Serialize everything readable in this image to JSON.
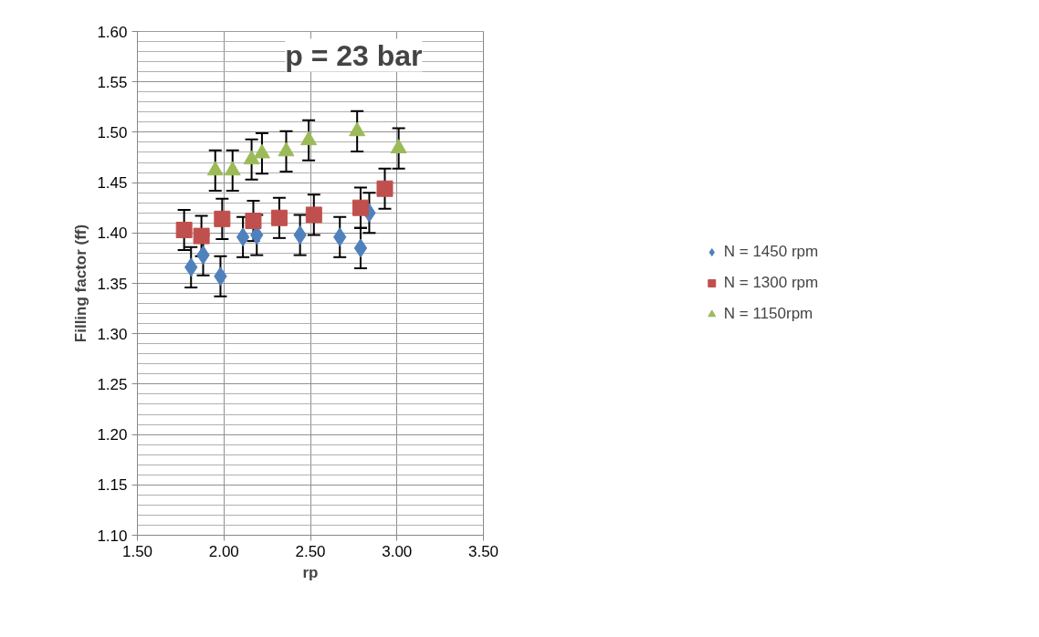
{
  "chart_data": {
    "type": "scatter",
    "title": "p = 23 bar",
    "xlabel": "rp",
    "ylabel": "Filling factor (ff)",
    "xlim": [
      1.5,
      3.5
    ],
    "xticks": [
      {
        "value": 1.5,
        "label": "1.50"
      },
      {
        "value": 2.0,
        "label": "2.00"
      },
      {
        "value": 2.5,
        "label": "2.50"
      },
      {
        "value": 3.0,
        "label": "3.00"
      },
      {
        "value": 3.5,
        "label": "3.50"
      }
    ],
    "ylim": [
      1.1,
      1.6
    ],
    "yticks": [
      {
        "value": 1.1,
        "label": "1.10"
      },
      {
        "value": 1.15,
        "label": "1.15"
      },
      {
        "value": 1.2,
        "label": "1.20"
      },
      {
        "value": 1.25,
        "label": "1.25"
      },
      {
        "value": 1.3,
        "label": "1.30"
      },
      {
        "value": 1.35,
        "label": "1.35"
      },
      {
        "value": 1.4,
        "label": "1.40"
      },
      {
        "value": 1.45,
        "label": "1.45"
      },
      {
        "value": 1.5,
        "label": "1.50"
      },
      {
        "value": 1.55,
        "label": "1.55"
      },
      {
        "value": 1.6,
        "label": "1.60"
      }
    ],
    "grid": true,
    "legend": "right",
    "series": [
      {
        "name": "N = 1450 rpm",
        "color": "#4f81bd",
        "marker": "diamond",
        "x": [
          1.81,
          1.88,
          1.98,
          2.11,
          2.19,
          2.44,
          2.67,
          2.79,
          2.84
        ],
        "values": [
          1.366,
          1.378,
          1.357,
          1.396,
          1.398,
          1.398,
          1.396,
          1.385,
          1.42
        ],
        "errors": [
          0.02,
          0.02,
          0.02,
          0.02,
          0.02,
          0.02,
          0.02,
          0.02,
          0.02
        ]
      },
      {
        "name": "N = 1300 rpm",
        "color": "#c0504d",
        "marker": "square",
        "x": [
          1.77,
          1.87,
          1.99,
          2.17,
          2.32,
          2.52,
          2.79,
          2.93
        ],
        "values": [
          1.403,
          1.397,
          1.414,
          1.412,
          1.415,
          1.418,
          1.425,
          1.444
        ],
        "errors": [
          0.02,
          0.02,
          0.02,
          0.02,
          0.02,
          0.02,
          0.02,
          0.02
        ]
      },
      {
        "name": "N = 1150rpm",
        "color": "#9bbb59",
        "marker": "triangle",
        "x": [
          1.95,
          2.05,
          2.16,
          2.22,
          2.36,
          2.49,
          2.77,
          3.01
        ],
        "values": [
          1.462,
          1.462,
          1.473,
          1.479,
          1.481,
          1.492,
          1.501,
          1.484
        ],
        "errors": [
          0.02,
          0.02,
          0.02,
          0.02,
          0.02,
          0.02,
          0.02,
          0.02
        ]
      }
    ]
  }
}
